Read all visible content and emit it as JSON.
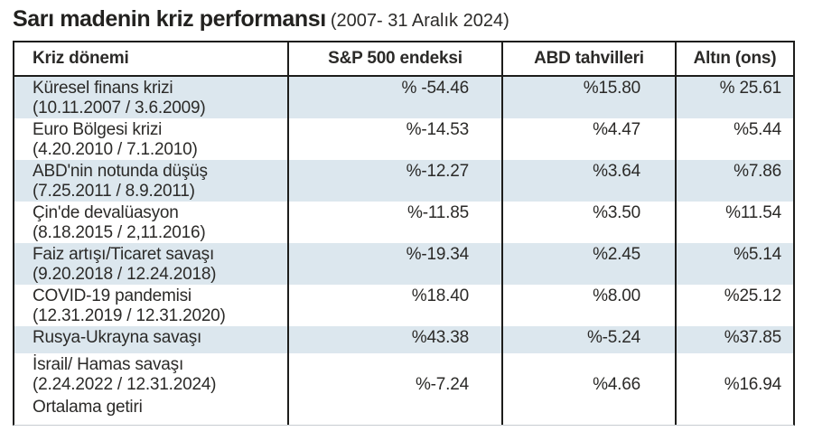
{
  "title": {
    "main": "Sarı madenin kriz performansı",
    "period": "(2007- 31 Aralık 2024)"
  },
  "table": {
    "headers": [
      "Kriz dönemi",
      "S&P 500 endeksi",
      "ABD tahvilleri",
      "Altın (ons)"
    ],
    "rows": [
      {
        "label": "Küresel finans krizi",
        "dates": "(10.11.2007 / 3.6.2009)",
        "sp500": "% -54.46",
        "bonds": "%15.80",
        "gold": "% 25.61"
      },
      {
        "label": "Euro Bölgesi krizi",
        "dates": "(4.20.2010 / 7.1.2010)",
        "sp500": "%-14.53",
        "bonds": "%4.47",
        "gold": "%5.44"
      },
      {
        "label": "ABD'nin notunda düşüş",
        "dates": "(7.25.2011 / 8.9.2011)",
        "sp500": "%-12.27",
        "bonds": "%3.64",
        "gold": "%7.86"
      },
      {
        "label": "Çin'de devalüasyon",
        "dates": "(8.18.2015 / 2,11.2016)",
        "sp500": "%-11.85",
        "bonds": "%3.50",
        "gold": "%11.54"
      },
      {
        "label": "Faiz artışı/Ticaret savaşı",
        "dates": "(9.20.2018 / 12.24.2018)",
        "sp500": "%-19.34",
        "bonds": "%2.45",
        "gold": "%5.14"
      },
      {
        "label": "COVID-19 pandemisi",
        "dates": "(12.31.2019 / 12.31.2020)",
        "sp500": "%18.40",
        "bonds": "%8.00",
        "gold": "%25.12"
      },
      {
        "label": "Rusya-Ukrayna savaşı",
        "dates": "",
        "sp500": "%43.38",
        "bonds": "%-5.24",
        "gold": "%37.85"
      },
      {
        "label": "İsrail/ Hamas savaşı",
        "dates": "(2.24.2022 / 12.31.2024)",
        "sp500": "%-7.24",
        "bonds": "%4.66",
        "gold": "%16.94"
      },
      {
        "label": "Ortalama getiri",
        "dates": "",
        "sp500": "",
        "bonds": "",
        "gold": ""
      }
    ]
  },
  "colors": {
    "row_shade": "#dce7ee",
    "border": "#1d1d1b",
    "text": "#2b2a28",
    "title_text": "#232220"
  },
  "chart_data": {
    "type": "table",
    "title": "Sarı madenin kriz performansı (2007- 31 Aralık 2024)",
    "columns": [
      "Kriz dönemi",
      "S&P 500 endeksi",
      "ABD tahvilleri",
      "Altın (ons)"
    ],
    "units": "percent",
    "rows": [
      {
        "crisis": "Küresel finans krizi",
        "dates": "10.11.2007 / 3.6.2009",
        "sp500": -54.46,
        "us_bonds": 15.8,
        "gold": 25.61
      },
      {
        "crisis": "Euro Bölgesi krizi",
        "dates": "4.20.2010 / 7.1.2010",
        "sp500": -14.53,
        "us_bonds": 4.47,
        "gold": 5.44
      },
      {
        "crisis": "ABD'nin notunda düşüş",
        "dates": "7.25.2011 / 8.9.2011",
        "sp500": -12.27,
        "us_bonds": 3.64,
        "gold": 7.86
      },
      {
        "crisis": "Çin'de devalüasyon",
        "dates": "8.18.2015 / 2,11.2016",
        "sp500": -11.85,
        "us_bonds": 3.5,
        "gold": 11.54
      },
      {
        "crisis": "Faiz artışı/Ticaret savaşı",
        "dates": "9.20.2018 / 12.24.2018",
        "sp500": -19.34,
        "us_bonds": 2.45,
        "gold": 5.14
      },
      {
        "crisis": "COVID-19 pandemisi",
        "dates": "12.31.2019 / 12.31.2020",
        "sp500": 18.4,
        "us_bonds": 8.0,
        "gold": 25.12
      },
      {
        "crisis": "Rusya-Ukrayna savaşı",
        "dates": "",
        "sp500": 43.38,
        "us_bonds": -5.24,
        "gold": 37.85
      },
      {
        "crisis": "İsrail/ Hamas savaşı",
        "dates": "2.24.2022 / 12.31.2024",
        "sp500": -7.24,
        "us_bonds": 4.66,
        "gold": 16.94
      },
      {
        "crisis": "Ortalama getiri",
        "dates": "",
        "sp500": null,
        "us_bonds": null,
        "gold": null
      }
    ]
  }
}
